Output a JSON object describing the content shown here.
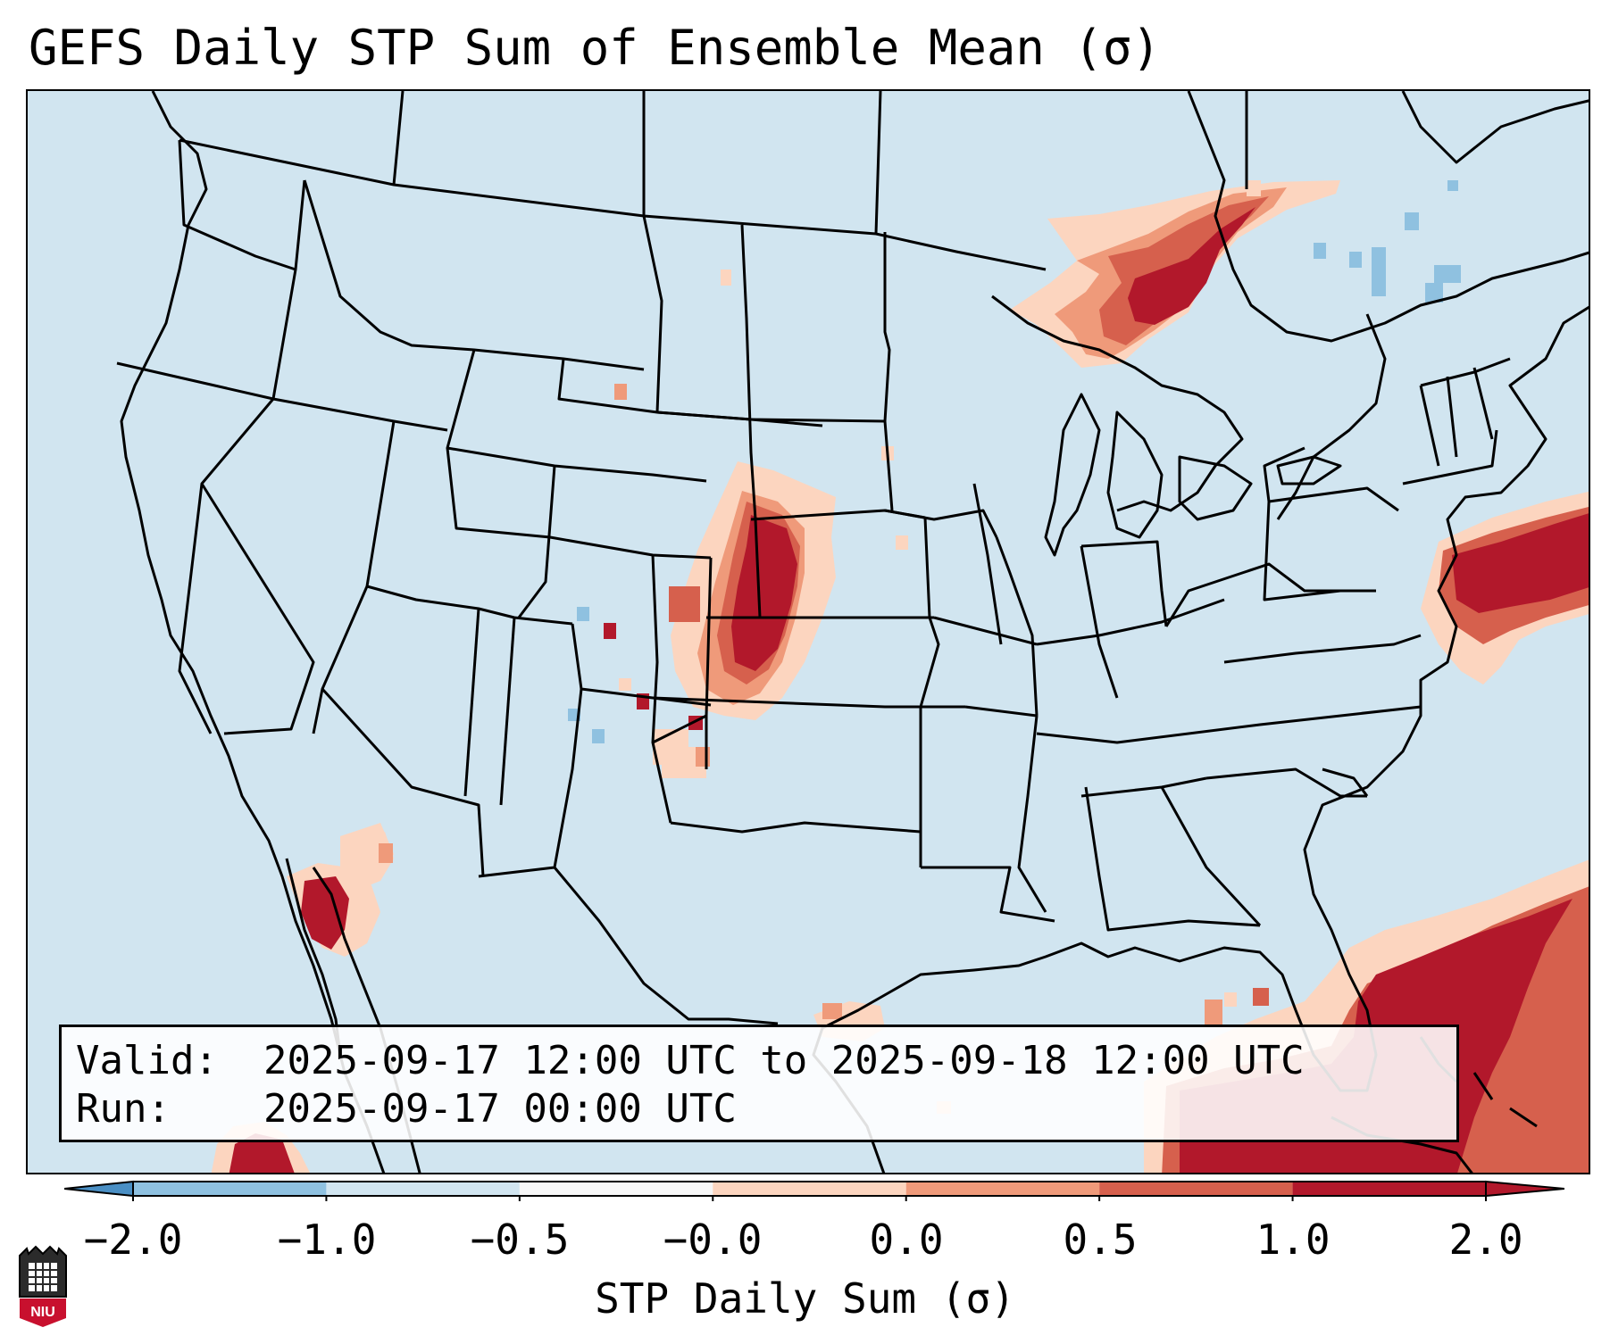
{
  "title": "GEFS Daily STP Sum of Ensemble Mean (σ)",
  "info": {
    "valid_label": "Valid:",
    "valid_value": "2025-09-17 12:00 UTC to 2025-09-18 12:00 UTC",
    "run_label": "Run:",
    "run_value": "2025-09-17 00:00 UTC"
  },
  "colorbar": {
    "label": "STP Daily Sum (σ)",
    "tick_labels": [
      "−2.0",
      "−1.0",
      "−0.5",
      "−0.0",
      "0.0",
      "0.5",
      "1.0",
      "2.0"
    ],
    "colors": [
      "#4a8fc4",
      "#8fc1e0",
      "#d1e5f0",
      "#f7f7f7",
      "#fcd5bf",
      "#ef9a7a",
      "#d6604d",
      "#b2182b"
    ],
    "extend": "both"
  },
  "map": {
    "background_color": "#d1e5f0",
    "border_color": "#000000",
    "features": [
      "coastlines",
      "state-borders",
      "country-borders"
    ]
  },
  "logo_text": "NIU"
}
